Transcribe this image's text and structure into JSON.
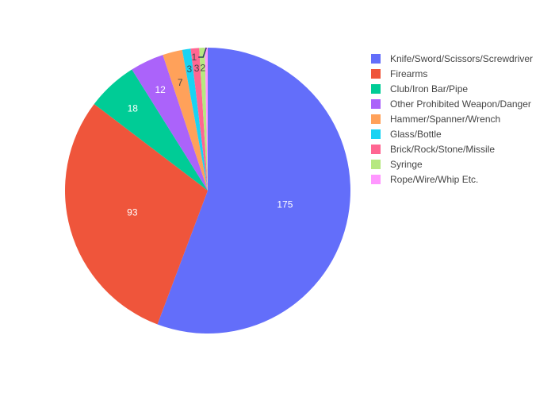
{
  "chart_data": {
    "type": "pie",
    "labels": [
      "Knife/Sword/Scissors/Screwdriver",
      "Firearms",
      "Club/Iron Bar/Pipe",
      "Other Prohibited Weapon/Danger",
      "Hammer/Spanner/Wrench",
      "Glass/Bottle",
      "Brick/Rock/Stone/Missile",
      "Syringe",
      "Rope/Wire/Whip Etc."
    ],
    "values": [
      175,
      93,
      18,
      12,
      7,
      3,
      3,
      2,
      1
    ],
    "value_labels": [
      "175",
      "93",
      "18",
      "12",
      "7",
      "3",
      "3",
      "2",
      "1"
    ],
    "colors": [
      "#636efa",
      "#EF553B",
      "#00cc96",
      "#ab63fa",
      "#FFA15A",
      "#19d3f3",
      "#FF6692",
      "#B6E880",
      "#FF97FF"
    ],
    "direction": "clockwise",
    "start": "top",
    "sort": "descending",
    "legend_position": "top-right",
    "title": ""
  }
}
